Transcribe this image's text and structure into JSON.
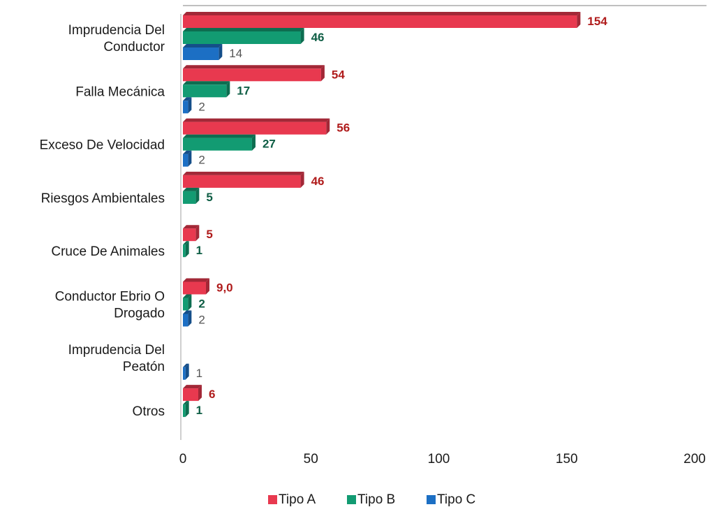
{
  "chart_data": {
    "type": "bar",
    "orientation": "horizontal",
    "categories": [
      [
        "Imprudencia Del",
        "Conductor"
      ],
      [
        "Falla Mecánica"
      ],
      [
        "Exceso De Velocidad"
      ],
      [
        "Riesgos Ambientales"
      ],
      [
        "Cruce De Animales"
      ],
      [
        "Conductor Ebrio O",
        "Drogado"
      ],
      [
        "Imprudencia Del",
        "Peatón"
      ],
      [
        "Otros"
      ]
    ],
    "series": [
      {
        "name": "Tipo A",
        "color": "#e8394f",
        "values": [
          154,
          54,
          56,
          46,
          5,
          9.0,
          null,
          6
        ],
        "labels": [
          "154",
          "54",
          "56",
          "46",
          "5",
          "9,0",
          "",
          "6"
        ]
      },
      {
        "name": "Tipo B",
        "color": "#129b72",
        "values": [
          46,
          17,
          27,
          5,
          1,
          2,
          null,
          1
        ],
        "labels": [
          "46",
          "17",
          "27",
          "5",
          "1",
          "2",
          "",
          "1"
        ]
      },
      {
        "name": "Tipo C",
        "color": "#1c6fc4",
        "values": [
          14,
          2,
          2,
          null,
          null,
          2,
          1,
          null
        ],
        "labels": [
          "14",
          "2",
          "2",
          "",
          "",
          "2",
          "1",
          ""
        ]
      }
    ],
    "x_ticks": [
      "0",
      "50",
      "100",
      "150",
      "200"
    ],
    "xlim": [
      0,
      200
    ],
    "grid": false,
    "legend_position": "bottom",
    "title": "",
    "xlabel": "",
    "ylabel": ""
  }
}
